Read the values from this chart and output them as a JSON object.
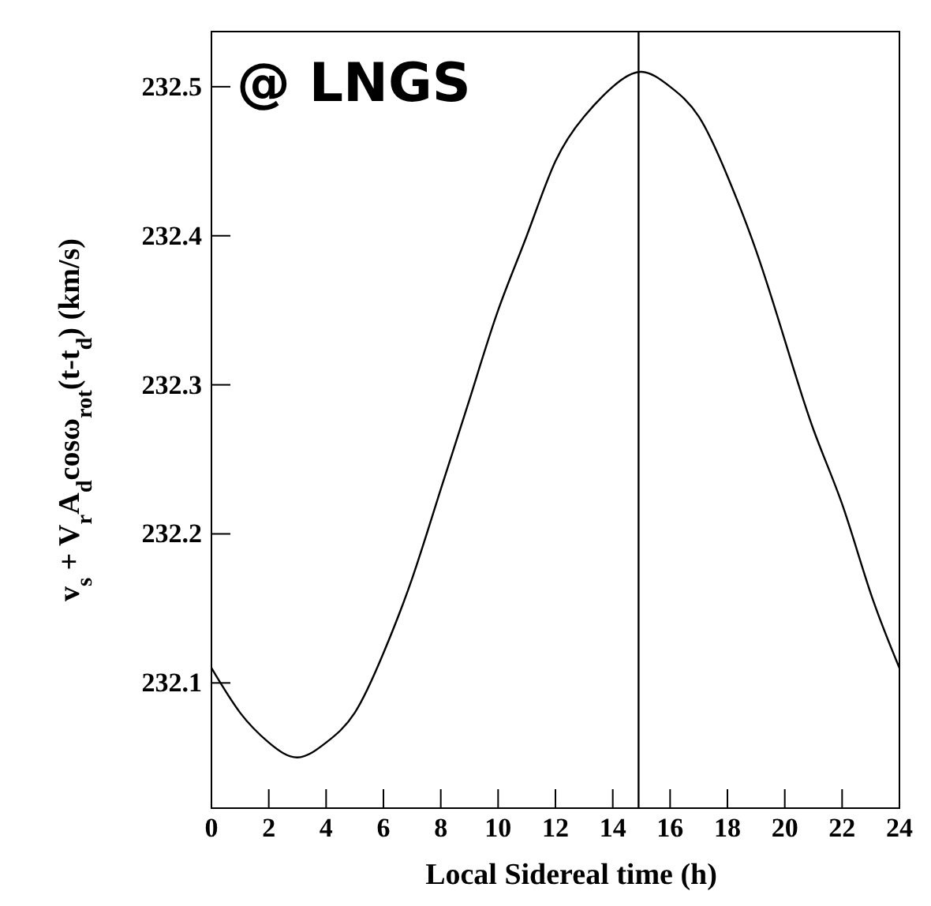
{
  "chart_data": {
    "type": "line",
    "xlabel": "Local Sidereal time (h)",
    "ylabel": "v$_{s}$ + V$_{r}$A$_{d}$cosω$_{rot}$(t-t$_{d}$) (km/s)",
    "annotations": [
      "@ LNGS"
    ],
    "x": [
      0,
      1,
      2,
      3,
      4,
      5,
      6,
      7,
      8,
      9,
      10,
      11,
      12,
      13,
      14,
      15,
      16,
      17,
      18,
      19,
      20,
      21,
      22,
      23,
      24
    ],
    "series": [
      {
        "color": "#000000",
        "values": [
          232.11,
          232.08,
          232.06,
          232.05,
          232.06,
          232.08,
          232.12,
          232.17,
          232.23,
          232.29,
          232.35,
          232.4,
          232.45,
          232.48,
          232.5,
          232.51,
          232.5,
          232.48,
          232.44,
          232.39,
          232.33,
          232.27,
          232.22,
          232.16,
          232.11
        ]
      }
    ],
    "ref_lines": [
      {
        "axis": "x",
        "value": 14.9,
        "color": "#000000"
      }
    ],
    "xlim": [
      0,
      24
    ],
    "ylim": [
      232.016,
      232.537
    ],
    "xticks": [
      0,
      2,
      4,
      6,
      8,
      10,
      12,
      14,
      16,
      18,
      20,
      22,
      24
    ],
    "yticks": [
      232.1,
      232.2,
      232.3,
      232.4,
      232.5
    ],
    "grid": false,
    "marker": "none",
    "line_style": "solid"
  }
}
